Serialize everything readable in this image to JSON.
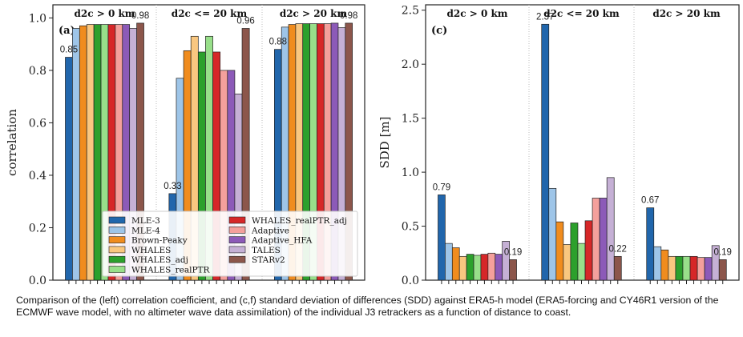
{
  "caption": "Comparison of the (left) correlation coefficient, and (c,f) standard deviation of differences (SDD) against ERA5-h model (ERA5-forcing and CY46R1 version of the ECMWF wave model, with no altimeter wave data assimilation) of the individual J3 retrackers as a function of distance to coast.",
  "legend": [
    {
      "name": "MLE-3",
      "color": "#2166ac"
    },
    {
      "name": "MLE-4",
      "color": "#9ec5e8"
    },
    {
      "name": "Brown-Peaky",
      "color": "#f08c1e"
    },
    {
      "name": "WHALES",
      "color": "#f9c780"
    },
    {
      "name": "WHALES_adj",
      "color": "#2ca02c"
    },
    {
      "name": "WHALES_realPTR",
      "color": "#98df8a"
    },
    {
      "name": "WHALES_realPTR_adj",
      "color": "#d62728"
    },
    {
      "name": "Adaptive",
      "color": "#f4a09c"
    },
    {
      "name": "Adaptive_HFA",
      "color": "#8c5ab8"
    },
    {
      "name": "TALES",
      "color": "#c5b0d5"
    },
    {
      "name": "STARv2",
      "color": "#8c564b"
    }
  ],
  "chart_data": [
    {
      "type": "bar",
      "panel_label": "(a)",
      "ylabel": "correlation",
      "ylim": [
        0.0,
        1.05
      ],
      "yticks": [
        0.0,
        0.2,
        0.4,
        0.6,
        0.8,
        1.0
      ],
      "ytick_labels": [
        "0.0",
        "0.2",
        "0.4",
        "0.6",
        "0.8",
        "1.0"
      ],
      "groups": [
        "d2c > 0 km",
        "d2c <= 20 km",
        "d2c > 20 km"
      ],
      "series_order": [
        "MLE-3",
        "MLE-4",
        "Brown-Peaky",
        "WHALES",
        "WHALES_adj",
        "WHALES_realPTR",
        "WHALES_realPTR_adj",
        "Adaptive",
        "Adaptive_HFA",
        "TALES",
        "STARv2"
      ],
      "values": [
        [
          0.85,
          0.96,
          0.97,
          0.975,
          0.975,
          0.975,
          0.975,
          0.975,
          0.975,
          0.96,
          0.98
        ],
        [
          0.33,
          0.77,
          0.875,
          0.93,
          0.87,
          0.93,
          0.87,
          0.8,
          0.8,
          0.71,
          0.96
        ],
        [
          0.88,
          0.965,
          0.975,
          0.978,
          0.978,
          0.978,
          0.978,
          0.978,
          0.98,
          0.963,
          0.98
        ]
      ],
      "annotations": [
        {
          "group": 0,
          "bar": 0,
          "text": "0.85"
        },
        {
          "group": 0,
          "bar": 10,
          "text": "0.98"
        },
        {
          "group": 1,
          "bar": 0,
          "text": "0.33"
        },
        {
          "group": 1,
          "bar": 10,
          "text": "0.96"
        },
        {
          "group": 2,
          "bar": 0,
          "text": "0.88"
        },
        {
          "group": 2,
          "bar": 10,
          "text": "0.98"
        }
      ],
      "legend_placement": "lower-center",
      "grid": false
    },
    {
      "type": "bar",
      "panel_label": "(c)",
      "ylabel": "SDD [m]",
      "ylim": [
        0.0,
        2.55
      ],
      "yticks": [
        0.0,
        0.5,
        1.0,
        1.5,
        2.0,
        2.5
      ],
      "ytick_labels": [
        "0.0",
        "0.5",
        "1.0",
        "1.5",
        "2.0",
        "2.5"
      ],
      "groups": [
        "d2c > 0 km",
        "d2c <= 20 km",
        "d2c > 20 km"
      ],
      "series_order": [
        "MLE-3",
        "MLE-4",
        "Brown-Peaky",
        "WHALES",
        "WHALES_adj",
        "WHALES_realPTR",
        "WHALES_realPTR_adj",
        "Adaptive",
        "Adaptive_HFA",
        "TALES",
        "STARv2"
      ],
      "values": [
        [
          0.79,
          0.34,
          0.3,
          0.22,
          0.24,
          0.23,
          0.24,
          0.25,
          0.24,
          0.36,
          0.19
        ],
        [
          2.37,
          0.85,
          0.54,
          0.33,
          0.53,
          0.34,
          0.55,
          0.76,
          0.76,
          0.95,
          0.22
        ],
        [
          0.67,
          0.31,
          0.28,
          0.22,
          0.22,
          0.22,
          0.22,
          0.21,
          0.21,
          0.32,
          0.19
        ]
      ],
      "annotations": [
        {
          "group": 0,
          "bar": 0,
          "text": "0.79"
        },
        {
          "group": 0,
          "bar": 10,
          "text": "0.19"
        },
        {
          "group": 1,
          "bar": 0,
          "text": "2.37"
        },
        {
          "group": 1,
          "bar": 10,
          "text": "0.22"
        },
        {
          "group": 2,
          "bar": 0,
          "text": "0.67"
        },
        {
          "group": 2,
          "bar": 10,
          "text": "0.19"
        }
      ],
      "grid": false
    }
  ]
}
